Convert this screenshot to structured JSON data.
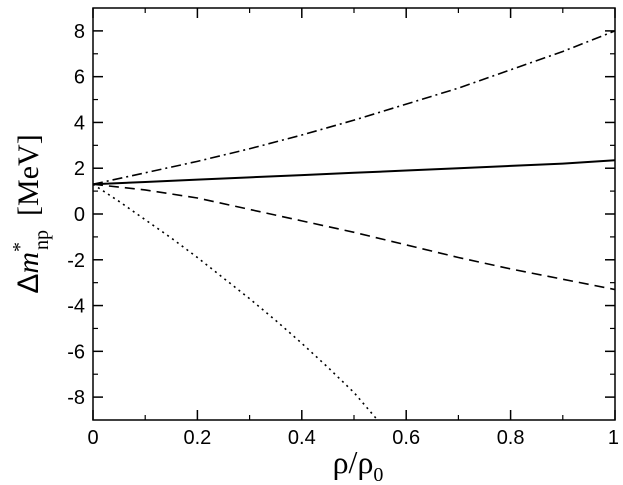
{
  "chart_data": {
    "type": "line",
    "title": "",
    "xlabel": {
      "main": "ρ/ρ",
      "sub": "0"
    },
    "ylabel": {
      "prefix": "Δ",
      "var": "m",
      "sup": "*",
      "sub": "np",
      "unit": "[MeV]"
    },
    "xlim": [
      0,
      1
    ],
    "ylim": [
      -9,
      9
    ],
    "x_ticks": [
      0,
      0.2,
      0.4,
      0.6,
      0.8,
      1
    ],
    "x_tick_labels": [
      "0",
      "0.2",
      "0.4",
      "0.6",
      "0.8",
      "1"
    ],
    "y_ticks": [
      -8,
      -6,
      -4,
      -2,
      0,
      2,
      4,
      6,
      8
    ],
    "y_tick_labels": [
      "-8",
      "-6",
      "-4",
      "-2",
      "0",
      "2",
      "4",
      "6",
      "8"
    ],
    "grid": false,
    "legend": "none",
    "series": [
      {
        "style": "solid",
        "x": [
          0,
          0.1,
          0.2,
          0.3,
          0.4,
          0.5,
          0.6,
          0.7,
          0.8,
          0.9,
          1.0
        ],
        "y": [
          1.3,
          1.4,
          1.5,
          1.6,
          1.7,
          1.8,
          1.9,
          2.0,
          2.1,
          2.2,
          2.35
        ]
      },
      {
        "style": "dashed",
        "x": [
          0,
          0.1,
          0.2,
          0.3,
          0.4,
          0.5,
          0.6,
          0.7,
          0.8,
          0.9,
          1.0
        ],
        "y": [
          1.3,
          1.05,
          0.7,
          0.2,
          -0.3,
          -0.8,
          -1.35,
          -1.9,
          -2.4,
          -2.85,
          -3.3
        ]
      },
      {
        "style": "dashdot",
        "x": [
          0,
          0.1,
          0.2,
          0.3,
          0.4,
          0.5,
          0.6,
          0.7,
          0.8,
          0.9,
          1.0
        ],
        "y": [
          1.3,
          1.8,
          2.3,
          2.85,
          3.45,
          4.1,
          4.8,
          5.5,
          6.3,
          7.1,
          8.0
        ]
      },
      {
        "style": "dotted",
        "x": [
          0,
          0.05,
          0.1,
          0.15,
          0.2,
          0.25,
          0.3,
          0.35,
          0.4,
          0.45,
          0.5,
          0.545
        ],
        "y": [
          1.3,
          0.55,
          -0.25,
          -1.05,
          -1.9,
          -2.8,
          -3.7,
          -4.65,
          -5.65,
          -6.7,
          -7.8,
          -9.0
        ]
      }
    ]
  }
}
